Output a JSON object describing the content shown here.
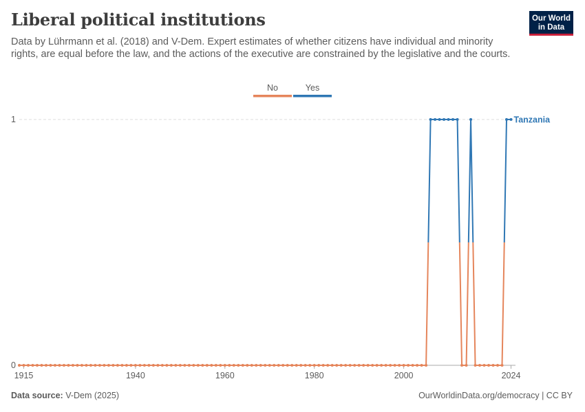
{
  "header": {
    "title": "Liberal political institutions",
    "subtitle": "Data by Lührmann et al. (2018) and V-Dem. Expert estimates of whether citizens have individual and minority rights, are equal before the law, and the actions of the executive are constrained by the legislative and the courts."
  },
  "logo": {
    "line1": "Our World",
    "line2": "in Data"
  },
  "footer": {
    "source_label": "Data source:",
    "source_value": "V-Dem (2025)",
    "link": "OurWorldinData.org/democracy | CC BY"
  },
  "colors": {
    "no": "#e5855b",
    "yes": "#2f77b4",
    "axis": "#aaaaaa",
    "grid": "#dddddd",
    "text": "#5b5b5b"
  },
  "chart_data": {
    "type": "line",
    "entity": "Tanzania",
    "legend": [
      {
        "name": "No",
        "color": "#e5855b"
      },
      {
        "name": "Yes",
        "color": "#2f77b4"
      }
    ],
    "x_ticks": [
      1915,
      1940,
      1960,
      1980,
      2000,
      2024
    ],
    "y_ticks": [
      0,
      1
    ],
    "xlim": [
      1914,
      2025
    ],
    "ylim": [
      0,
      1
    ],
    "series_label": "Tanzania",
    "x_start": 1914,
    "x_end": 2024,
    "yes_years": [
      2006,
      2007,
      2008,
      2009,
      2010,
      2011,
      2012,
      2015,
      2023,
      2024
    ]
  }
}
